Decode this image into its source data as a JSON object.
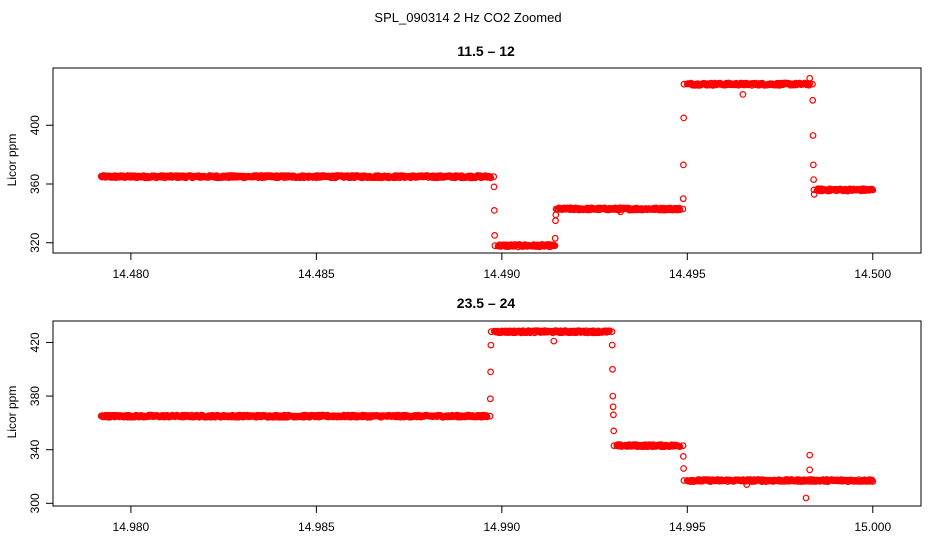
{
  "figure_title": "SPL_090314  2 Hz CO2 Zoomed",
  "colors": {
    "points": "#ff0000",
    "axes": "#000000",
    "background": "#ffffff"
  },
  "chart_data": [
    {
      "type": "scatter",
      "title": "11.5 – 12",
      "xlabel": "",
      "ylabel": "Licor ppm",
      "xlim": [
        14.4779,
        14.5013
      ],
      "ylim": [
        313,
        439
      ],
      "xticks": [
        14.48,
        14.485,
        14.49,
        14.495,
        14.5
      ],
      "xtick_labels": [
        "14.480",
        "14.485",
        "14.490",
        "14.495",
        "14.500"
      ],
      "yticks": [
        320,
        360,
        400
      ],
      "ytick_labels": [
        "320",
        "360",
        "400"
      ],
      "series": [
        {
          "name": "CO2",
          "segments": [
            {
              "x": [
                14.4792,
                14.4897
              ],
              "y": 365
            },
            {
              "x": [
                14.4899,
                14.4914
              ],
              "y": 318
            },
            {
              "x": [
                14.4915,
                14.4948
              ],
              "y": 343
            },
            {
              "x": [
                14.495,
                14.4983
              ],
              "y": 428
            },
            {
              "x": [
                14.4985,
                14.5
              ],
              "y": 356
            }
          ],
          "transitions": [
            {
              "x": 14.4898,
              "y": [
                365,
                358,
                342,
                325,
                318
              ]
            },
            {
              "x": 14.49145,
              "y": [
                318,
                323,
                335,
                339,
                343
              ]
            },
            {
              "x": 14.4949,
              "y": [
                343,
                350,
                373,
                405,
                428
              ]
            },
            {
              "x": 14.4984,
              "y": [
                428,
                417,
                393,
                373,
                363,
                356,
                353
              ]
            }
          ],
          "outliers": [
            {
              "x": 14.4965,
              "y": 421
            },
            {
              "x": 14.4983,
              "y": 432
            },
            {
              "x": 14.4932,
              "y": 341
            }
          ]
        }
      ]
    },
    {
      "type": "scatter",
      "title": "23.5 – 24",
      "xlabel": "",
      "ylabel": "Licor ppm",
      "xlim": [
        14.9779,
        15.0013
      ],
      "ylim": [
        298,
        436
      ],
      "xticks": [
        14.98,
        14.985,
        14.99,
        14.995,
        15.0
      ],
      "xtick_labels": [
        "14.980",
        "14.985",
        "14.990",
        "14.995",
        "15.000"
      ],
      "yticks": [
        300,
        340,
        380,
        420
      ],
      "ytick_labels": [
        "300",
        "340",
        "380",
        "420"
      ],
      "series": [
        {
          "name": "CO2",
          "segments": [
            {
              "x": [
                14.9792,
                14.9896
              ],
              "y": 365
            },
            {
              "x": [
                14.9898,
                14.9929
              ],
              "y": 428
            },
            {
              "x": [
                14.9931,
                14.9948
              ],
              "y": 343
            },
            {
              "x": [
                14.995,
                15.0
              ],
              "y": 317
            }
          ],
          "transitions": [
            {
              "x": 14.9897,
              "y": [
                365,
                378,
                398,
                418,
                428
              ]
            },
            {
              "x": 14.993,
              "y": [
                428,
                418,
                400,
                380,
                372,
                366,
                354,
                343
              ]
            },
            {
              "x": 14.9949,
              "y": [
                343,
                335,
                326,
                317
              ]
            }
          ],
          "outliers": [
            {
              "x": 14.9914,
              "y": 421
            },
            {
              "x": 14.9966,
              "y": 314
            },
            {
              "x": 14.9983,
              "y": 336
            },
            {
              "x": 14.9983,
              "y": 325
            },
            {
              "x": 14.9982,
              "y": 304
            }
          ]
        }
      ]
    }
  ]
}
